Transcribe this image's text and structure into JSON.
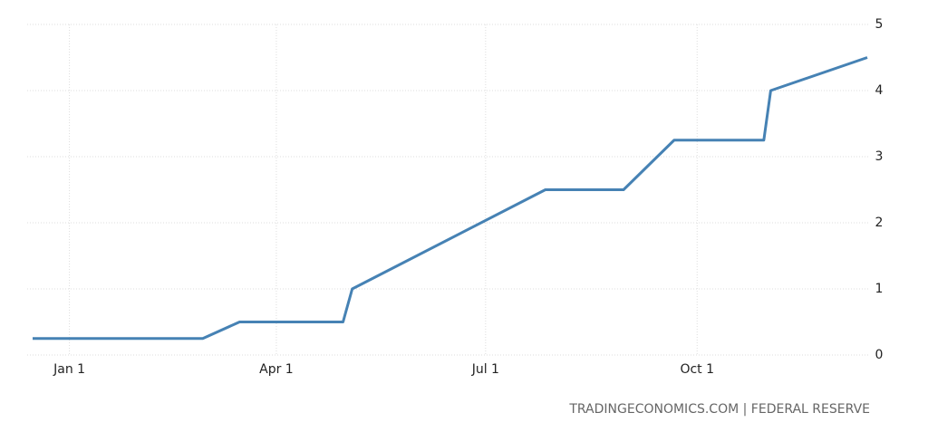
{
  "chart_data": {
    "type": "line",
    "x": [
      "Dec 16",
      "Feb 28",
      "Mar 16",
      "Apr 30",
      "May 4",
      "Jul 27",
      "Aug 30",
      "Sep 21",
      "Oct 30",
      "Nov 2",
      "Dec 14"
    ],
    "series": [
      {
        "color": "#4682b4",
        "values": [
          0.25,
          0.25,
          0.5,
          0.5,
          1.0,
          2.5,
          2.5,
          3.25,
          3.25,
          4.0,
          4.5
        ]
      }
    ],
    "xticks": [
      "Jan 1",
      "Apr 1",
      "Jul 1",
      "Oct 1"
    ],
    "ylim": [
      0,
      5
    ],
    "yticks": [
      0,
      1,
      2,
      3,
      4,
      5
    ],
    "grid": true,
    "source": "TRADINGECONOMICS.COM | FEDERAL RESERVE"
  }
}
